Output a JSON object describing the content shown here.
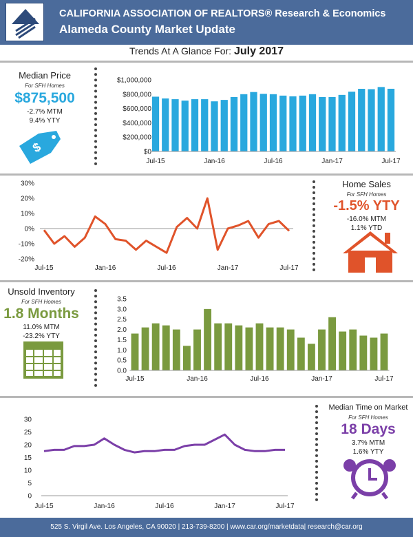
{
  "header": {
    "org": "CALIFORNIA ASSOCIATION OF REALTORS® Research & Economics",
    "title": "Alameda County Market Update"
  },
  "trends": {
    "prefix": "Trends At A Glance For:",
    "month": "July 2017"
  },
  "price": {
    "label": "Median Price",
    "sub": "For SFH Homes",
    "value": "$875,500",
    "mtm": "-2.7% MTM",
    "yty": "9.4% YTY"
  },
  "sales": {
    "label": "Home Sales",
    "sub": "For SFH Homes",
    "value": "-1.5% YTY",
    "mtm": "-16.0% MTM",
    "ytd": "1.1% YTD"
  },
  "inventory": {
    "label": "Unsold Inventory",
    "sub": "For SFH Homes",
    "value": "1.8 Months",
    "mtm": "11.0% MTM",
    "yty": "-23.2% YTY"
  },
  "time": {
    "label": "Median Time on Market",
    "sub": "For SFH Homes",
    "value": "18 Days",
    "mtm": "3.7% MTM",
    "yty": "1.6% YTY"
  },
  "footer": {
    "text": "525 S. Virgil Ave. Los Angeles, CA 90020 | 213-739-8200 | www.car.org/marketdata| research@car.org"
  },
  "colors": {
    "header": "#4b6b9b",
    "price": "#29a8de",
    "sales": "#e0532a",
    "inventory": "#7a9a3f",
    "time": "#7b3fa8"
  },
  "chart_data": [
    {
      "type": "bar",
      "name": "median-price",
      "x_ticks": [
        "Jul-15",
        "Jan-16",
        "Jul-16",
        "Jan-17",
        "Jul-17"
      ],
      "y_ticks": [
        "$0",
        "$200,000",
        "$400,000",
        "$600,000",
        "$800,000",
        "$1,000,000"
      ],
      "ylim": [
        0,
        1000000
      ],
      "values": [
        765000,
        740000,
        730000,
        710000,
        730000,
        730000,
        700000,
        720000,
        760000,
        800000,
        830000,
        805000,
        800000,
        780000,
        770000,
        780000,
        800000,
        760000,
        760000,
        790000,
        835000,
        875000,
        870000,
        900000,
        875500
      ]
    },
    {
      "type": "line",
      "name": "home-sales",
      "x_ticks": [
        "Jul-15",
        "Jan-16",
        "Jul-16",
        "Jan-17",
        "Jul-17"
      ],
      "y_ticks": [
        "-20%",
        "-10%",
        "0%",
        "10%",
        "20%",
        "30%"
      ],
      "ylim": [
        -20,
        30
      ],
      "values": [
        -1,
        -10,
        -5,
        -12,
        -6,
        8,
        3,
        -7,
        -8,
        -14,
        -8,
        -12,
        -16,
        1,
        7,
        0,
        20,
        -14,
        0,
        2,
        5,
        -6,
        3,
        5,
        -1.5
      ]
    },
    {
      "type": "bar",
      "name": "unsold-inventory",
      "x_ticks": [
        "Jul-15",
        "Jan-16",
        "Jul-16",
        "Jan-17",
        "Jul-17"
      ],
      "y_ticks": [
        "0.0",
        "0.5",
        "1.0",
        "1.5",
        "2.0",
        "2.5",
        "3.0",
        "3.5"
      ],
      "ylim": [
        0,
        3.5
      ],
      "values": [
        1.8,
        2.1,
        2.3,
        2.2,
        2.0,
        1.2,
        2.0,
        3.0,
        2.3,
        2.3,
        2.2,
        2.1,
        2.3,
        2.1,
        2.1,
        2.0,
        1.6,
        1.3,
        2.0,
        2.6,
        1.9,
        2.0,
        1.7,
        1.6,
        1.8
      ]
    },
    {
      "type": "line",
      "name": "time-on-market",
      "x_ticks": [
        "Jul-15",
        "Jan-16",
        "Jul-16",
        "Jan-17",
        "Jul-17"
      ],
      "y_ticks": [
        "0",
        "5",
        "10",
        "15",
        "20",
        "25",
        "30"
      ],
      "ylim": [
        0,
        30
      ],
      "values": [
        17.5,
        18,
        18,
        19.5,
        19.5,
        20,
        22.5,
        20,
        18,
        17,
        17.5,
        17.5,
        18,
        18,
        19.5,
        20,
        20,
        22,
        24,
        20,
        18,
        17.5,
        17.5,
        18,
        18
      ]
    }
  ]
}
